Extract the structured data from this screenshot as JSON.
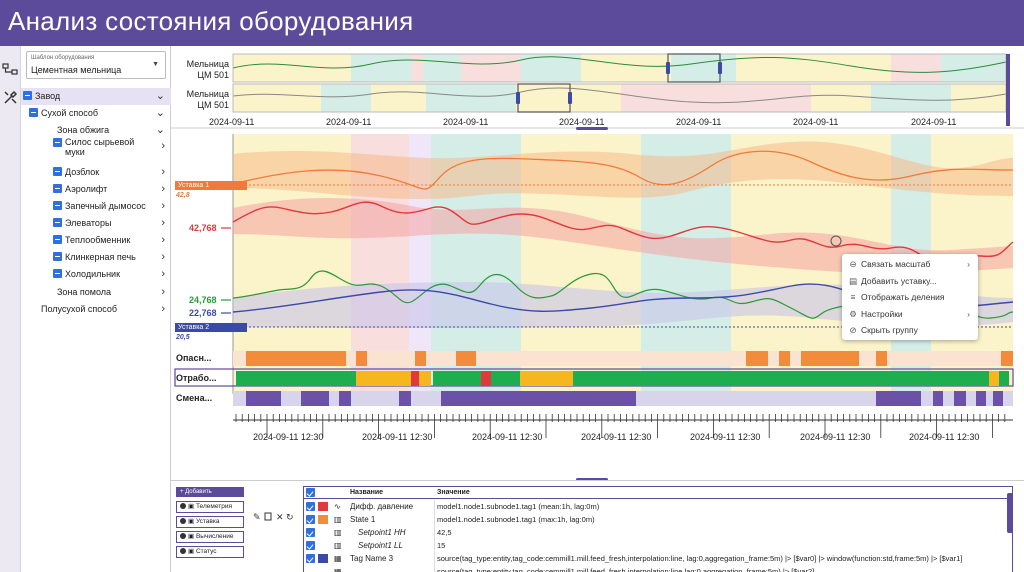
{
  "app": {
    "title": "Анализ состояния оборудования"
  },
  "sidebar": {
    "template_label": "Шаблон оборудования",
    "template_value": "Цементная мельница",
    "tree": [
      {
        "label": "Завод",
        "level": 0,
        "checked": true,
        "chev": "v",
        "highlight": true
      },
      {
        "label": "Сухой способ",
        "level": 1,
        "checked": true,
        "chev": "v",
        "highlight": false
      },
      {
        "label": "Зона обжига",
        "level": 2,
        "checked": false,
        "chev": "v",
        "highlight": false
      },
      {
        "label": "Силос сырьевой муки",
        "level": 3,
        "checked": true,
        "chev": ">",
        "highlight": false
      },
      {
        "label": "Дозблок",
        "level": 3,
        "checked": true,
        "chev": ">",
        "highlight": false
      },
      {
        "label": "Аэролифт",
        "level": 3,
        "checked": true,
        "chev": ">",
        "highlight": false
      },
      {
        "label": "Запечный дымосос",
        "level": 3,
        "checked": true,
        "chev": ">",
        "highlight": false
      },
      {
        "label": "Элеваторы",
        "level": 3,
        "checked": true,
        "chev": ">",
        "highlight": false
      },
      {
        "label": "Теплообменник",
        "level": 3,
        "checked": true,
        "chev": ">",
        "highlight": false
      },
      {
        "label": "Клинкерная печь",
        "level": 3,
        "checked": true,
        "chev": ">",
        "highlight": false
      },
      {
        "label": "Холодильник",
        "level": 3,
        "checked": true,
        "chev": ">",
        "highlight": false
      },
      {
        "label": "Зона помола",
        "level": 2,
        "checked": false,
        "chev": ">",
        "highlight": false
      },
      {
        "label": "Полусухой способ",
        "level": 1,
        "checked": false,
        "chev": ">",
        "highlight": false
      }
    ]
  },
  "overview": {
    "rows": [
      {
        "label": "Мельница ЦМ 501"
      },
      {
        "label": "Мельница ЦМ 501"
      }
    ],
    "dates": [
      "2024-09-11",
      "2024-09-11",
      "2024-09-11",
      "2024-09-11",
      "2024-09-11",
      "2024-09-11",
      "2024-09-11"
    ]
  },
  "chart": {
    "setpoint1": {
      "label": "Уставка 1",
      "value": "42,8",
      "color": "#f07a3a"
    },
    "setpoint2": {
      "label": "Уставка 2",
      "value": "20,5",
      "color": "#3b4aa8"
    },
    "value_red": "42,768",
    "value_green": "24,768",
    "value_blue": "22,768",
    "state_rows": [
      {
        "label": "Опасн..."
      },
      {
        "label": "Отрабо..."
      },
      {
        "label": "Смена..."
      }
    ],
    "time_labels": [
      "2024-09-11 12:30",
      "2024-09-11 12:30",
      "2024-09-11 12:30",
      "2024-09-11 12:30",
      "2024-09-11 12:30",
      "2024-09-11 12:30",
      "2024-09-11 12:30"
    ]
  },
  "context_menu": {
    "items": [
      {
        "label": "Связать масштаб",
        "icon": "link-icon",
        "glyph": "⊖",
        "has_sub": true
      },
      {
        "label": "Добавить уставку...",
        "icon": "add-setpoint-icon",
        "glyph": "▤",
        "has_sub": false
      },
      {
        "label": "Отображать деления",
        "icon": "ticks-icon",
        "glyph": "≡",
        "has_sub": false
      },
      {
        "label": "Настройки",
        "icon": "gear-icon",
        "glyph": "⚙",
        "has_sub": true
      },
      {
        "label": "Скрыть группу",
        "icon": "hide-icon",
        "glyph": "⊘",
        "has_sub": false
      }
    ]
  },
  "bottom_panel": {
    "add_button": "+ Добавить",
    "filters": [
      "Телеметрия",
      "Уставка",
      "Вычисление",
      "Статус"
    ],
    "table": {
      "col_name": "Название",
      "col_value": "Значение",
      "rows": [
        {
          "name": "Дифф. давление",
          "value": "model1.node1.subnode1.tag1 (mean:1h, lag:0m)",
          "swatch": "#e0393e",
          "italic": false
        },
        {
          "name": "State 1",
          "value": "model1.node1.subnode1.tag1 (max:1h, lag:0m)",
          "swatch": "#f28b3a",
          "italic": false
        },
        {
          "name": "Setpoint1 HH",
          "value": "42,5",
          "swatch": "",
          "italic": true
        },
        {
          "name": "Setpoint1 LL",
          "value": "15",
          "swatch": "",
          "italic": true
        },
        {
          "name": "Tag Name 3",
          "value": "source(tag_type:entity,tag_code:cemmill1.mill.feed_fresh,interpolation:line, lag:0,aggregation_frame:5m) |> [$var0] |> window(function:std,frame:5m) |> [$var1]",
          "swatch": "#3b4aa8",
          "italic": false
        },
        {
          "name": "",
          "value": "source(tag_type:entity,tag_code:cemmill1.mill.feed_fresh,interpolation:line,lag:0,aggregation_frame:5m) |> [$var2]",
          "swatch": "",
          "italic": false
        }
      ]
    }
  },
  "colors": {
    "accent": "#5c4b9b",
    "checkbox": "#2f6fde",
    "zone_yellow": "#fbf3c9",
    "zone_teal": "#d4ede6",
    "zone_pink": "#f9dede",
    "line_orange": "#f07a3a",
    "line_red": "#e0393e",
    "line_green": "#2a9a3a",
    "line_blue": "#3b4aa8"
  }
}
